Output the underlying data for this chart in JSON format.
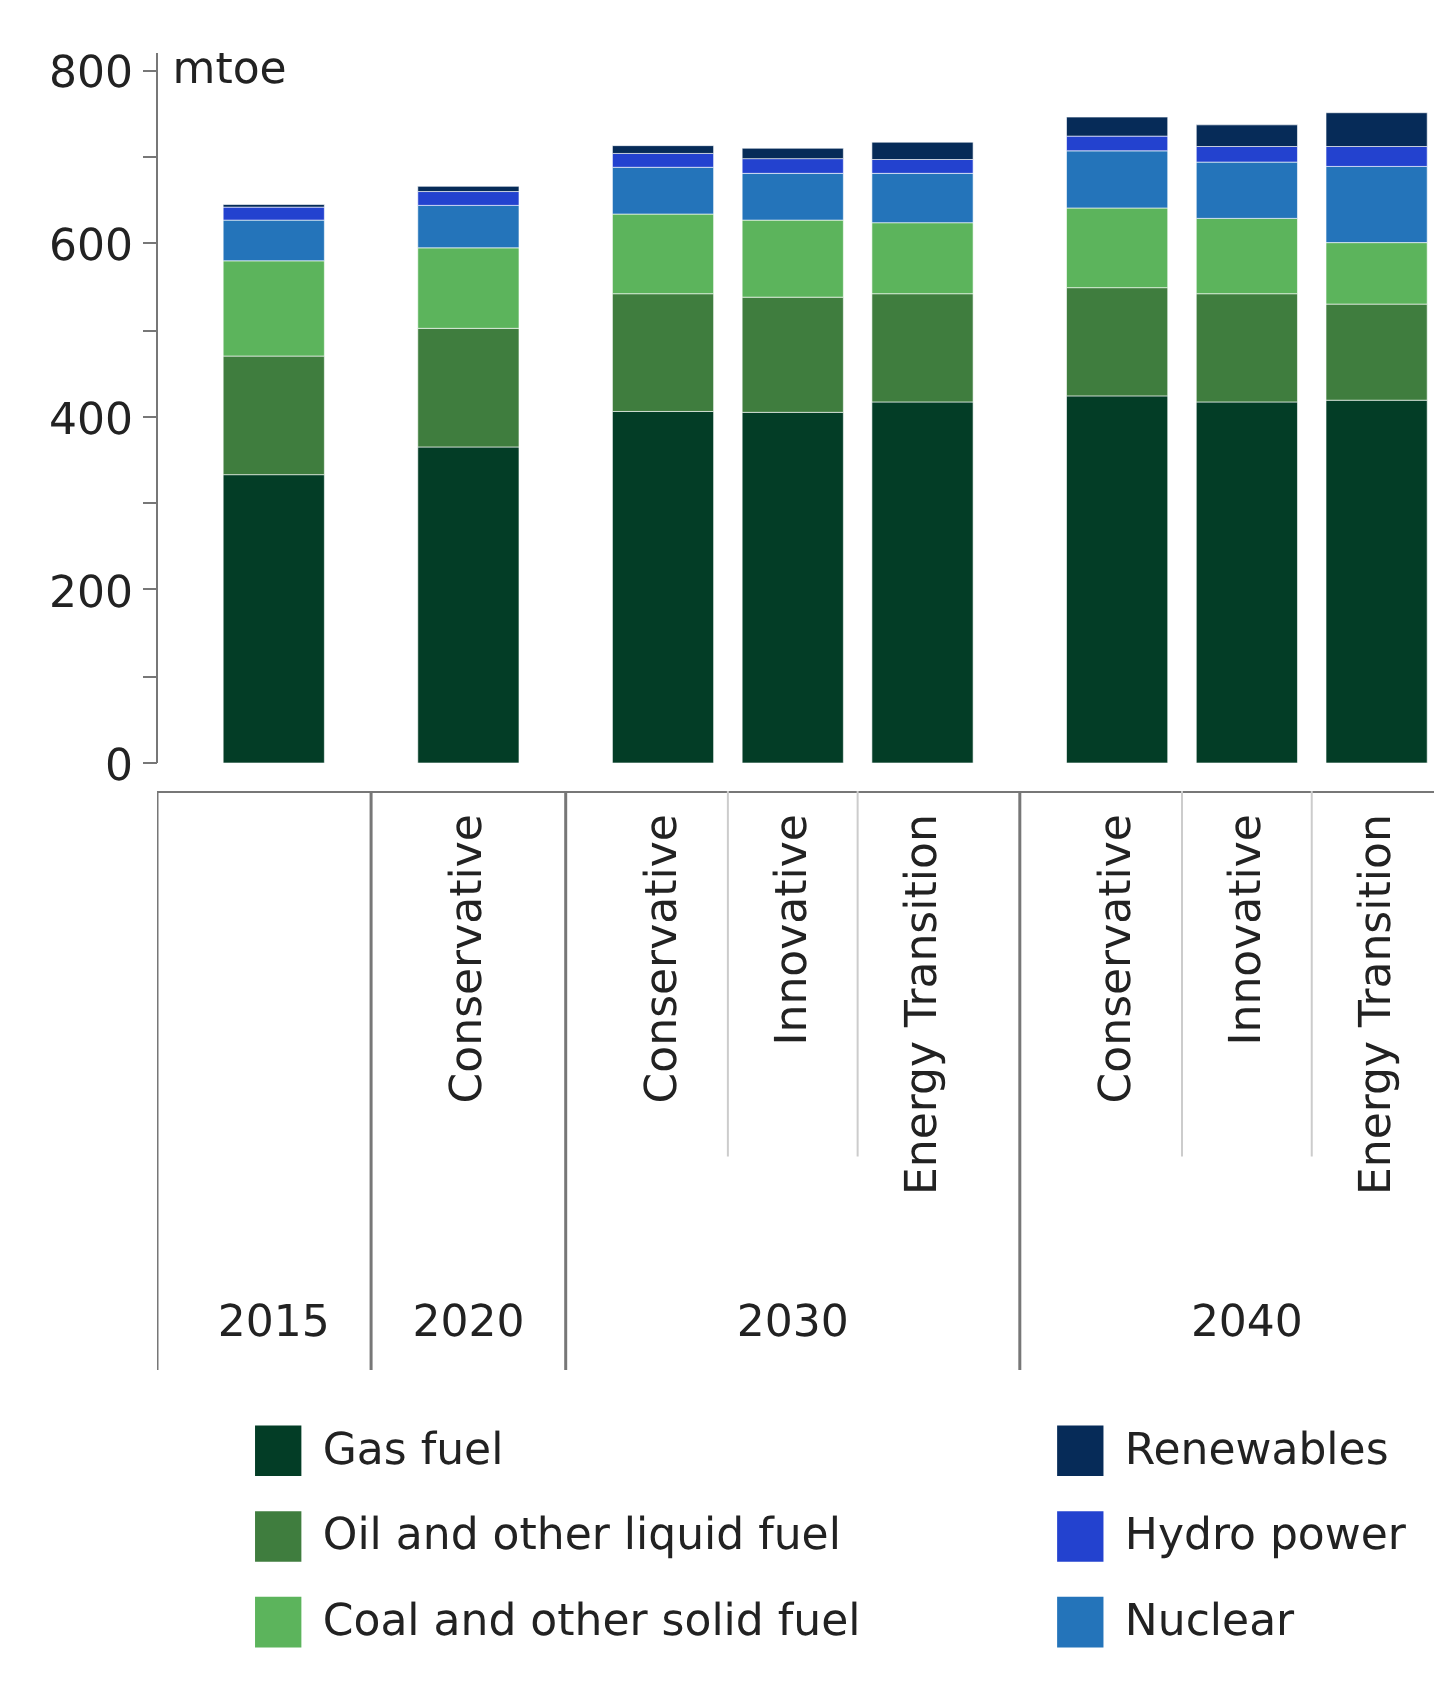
{
  "chart_data": {
    "type": "bar",
    "stacked": true,
    "ylabel": "mtoe",
    "categories": [
      [
        "2015",
        null
      ],
      [
        "2020",
        "Conservative"
      ],
      [
        "2030",
        "Conservative"
      ],
      [
        null,
        "Innovative"
      ],
      [
        null,
        "Energy Transition"
      ],
      [
        "2040",
        "Conservative"
      ],
      [
        null,
        "Innovative"
      ],
      [
        null,
        "Energy Transition"
      ]
    ],
    "series": [
      {
        "name": "Gas fuel",
        "color": "#033d26",
        "values": [
          333,
          365,
          406,
          405,
          417,
          424,
          417,
          419
        ]
      },
      {
        "name": "Oil and other liquid fuel",
        "color": "#3f7d3e",
        "values": [
          137,
          137,
          136,
          133,
          125,
          125,
          125,
          111
        ]
      },
      {
        "name": "Coal and other solid fuel",
        "color": "#5cb45c",
        "values": [
          110,
          93,
          92,
          89,
          82,
          92,
          87,
          71
        ]
      },
      {
        "name": "Nuclear",
        "color": "#2474ba",
        "values": [
          47,
          49,
          54,
          54,
          57,
          66,
          65,
          88
        ]
      },
      {
        "name": "Hydro power",
        "color": "#2342cf",
        "values": [
          15,
          16,
          16,
          17,
          16,
          17,
          18,
          23
        ]
      },
      {
        "name": "Renewables",
        "color": "#062b58",
        "values": [
          3,
          6,
          9,
          12,
          20,
          22,
          25,
          39
        ]
      }
    ],
    "ylim": [
      0,
      820
    ],
    "yticks": [
      0,
      200,
      400,
      600,
      800
    ],
    "grid": false,
    "legend": "bottom"
  }
}
